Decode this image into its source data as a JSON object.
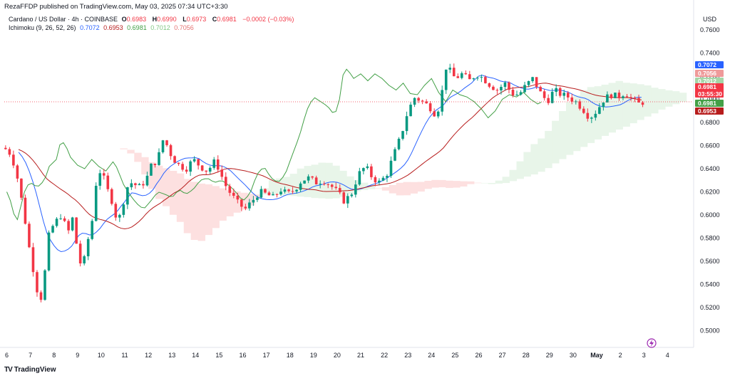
{
  "header": {
    "published": "RezaFFDP published on TradingView.com, May 03, 2025 07:34 UTC+3:30"
  },
  "legend": {
    "symbol": "Cardano / US Dollar · 4h · COINBASE",
    "ohlc": [
      {
        "k": "O",
        "v": "0.6983"
      },
      {
        "k": "H",
        "v": "0.6990"
      },
      {
        "k": "L",
        "v": "0.6973"
      },
      {
        "k": "C",
        "v": "0.6981"
      }
    ],
    "change": "−0.0002 (−0.03%)",
    "indicator": "Ichimoku (9, 26, 52, 26)",
    "indicator_values": [
      {
        "v": "0.7072",
        "color": "#2962ff"
      },
      {
        "v": "0.6953",
        "color": "#b71c1c"
      },
      {
        "v": "0.6981",
        "color": "#43a047"
      },
      {
        "v": "0.7012",
        "color": "#a5d6a7"
      },
      {
        "v": "0.7056",
        "color": "#ef9a9a"
      }
    ]
  },
  "axis": {
    "currency": "USD",
    "y_ticks": [
      "0.7600",
      "0.7400",
      "0.7200",
      "0.7000",
      "0.6800",
      "0.6600",
      "0.6400",
      "0.6200",
      "0.6000",
      "0.5800",
      "0.5600",
      "0.5400",
      "0.5200",
      "0.5000"
    ],
    "x_ticks": [
      "6",
      "7",
      "8",
      "9",
      "10",
      "11",
      "12",
      "13",
      "14",
      "15",
      "16",
      "17",
      "18",
      "19",
      "20",
      "21",
      "22",
      "23",
      "24",
      "25",
      "26",
      "27",
      "28",
      "29",
      "30",
      "May",
      "2",
      "3",
      "4"
    ]
  },
  "price_tags": [
    {
      "label": "0.7072",
      "value": 0.7072,
      "color": "#2962ff"
    },
    {
      "label": "0.7056",
      "value": 0.7056,
      "color": "#ef9a9a"
    },
    {
      "label": "0.7012",
      "value": 0.7012,
      "color": "#a5d6a7"
    },
    {
      "label": "0.6981",
      "value": 0.6981,
      "color": "#f23645",
      "sub": "03:55:30"
    },
    {
      "label": "0.6981",
      "value": 0.695,
      "color": "#43a047"
    },
    {
      "label": "0.6953",
      "value": 0.6935,
      "color": "#b71c1c"
    }
  ],
  "branding": "TradingView",
  "colors": {
    "up": "#089981",
    "down": "#f23645",
    "tenkan": "#2962ff",
    "kijun": "#b71c1c",
    "chikou": "#43a047",
    "cloud_bull": "#e8f5e9",
    "cloud_bear": "#fde0e0"
  },
  "chart_data": {
    "type": "candlestick",
    "title": "Cardano / US Dollar · 4h · COINBASE",
    "ylim": [
      0.49,
      0.77
    ],
    "x_categories": [
      "6",
      "7",
      "8",
      "9",
      "10",
      "11",
      "12",
      "13",
      "14",
      "15",
      "16",
      "17",
      "18",
      "19",
      "20",
      "21",
      "22",
      "23",
      "24",
      "25",
      "26",
      "27",
      "28",
      "29",
      "30",
      "May",
      "2",
      "3",
      "4"
    ],
    "last_price": 0.6981,
    "close_path": [
      [
        5.9,
        0.658
      ],
      [
        6.2,
        0.652
      ],
      [
        6.5,
        0.628
      ],
      [
        6.8,
        0.592
      ],
      [
        7.0,
        0.565
      ],
      [
        7.2,
        0.545
      ],
      [
        7.4,
        0.522
      ],
      [
        7.6,
        0.548
      ],
      [
        7.8,
        0.585
      ],
      [
        8.0,
        0.592
      ],
      [
        8.3,
        0.6
      ],
      [
        8.6,
        0.585
      ],
      [
        8.8,
        0.598
      ],
      [
        9.0,
        0.568
      ],
      [
        9.2,
        0.552
      ],
      [
        9.4,
        0.575
      ],
      [
        9.6,
        0.592
      ],
      [
        9.8,
        0.63
      ],
      [
        10.0,
        0.64
      ],
      [
        10.2,
        0.625
      ],
      [
        10.5,
        0.61
      ],
      [
        10.7,
        0.592
      ],
      [
        10.9,
        0.608
      ],
      [
        11.1,
        0.624
      ],
      [
        11.3,
        0.628
      ],
      [
        11.6,
        0.624
      ],
      [
        11.9,
        0.63
      ],
      [
        12.1,
        0.642
      ],
      [
        12.4,
        0.648
      ],
      [
        12.6,
        0.665
      ],
      [
        12.8,
        0.66
      ],
      [
        13.0,
        0.65
      ],
      [
        13.3,
        0.643
      ],
      [
        13.6,
        0.64
      ],
      [
        13.9,
        0.648
      ],
      [
        14.2,
        0.642
      ],
      [
        14.5,
        0.638
      ],
      [
        14.8,
        0.646
      ],
      [
        15.0,
        0.64
      ],
      [
        15.2,
        0.628
      ],
      [
        15.5,
        0.618
      ],
      [
        15.8,
        0.61
      ],
      [
        16.1,
        0.605
      ],
      [
        16.4,
        0.612
      ],
      [
        16.7,
        0.62
      ],
      [
        17.0,
        0.618
      ],
      [
        17.3,
        0.615
      ],
      [
        17.6,
        0.622
      ],
      [
        17.9,
        0.618
      ],
      [
        18.2,
        0.622
      ],
      [
        18.5,
        0.63
      ],
      [
        18.8,
        0.632
      ],
      [
        19.1,
        0.628
      ],
      [
        19.4,
        0.63
      ],
      [
        19.7,
        0.626
      ],
      [
        20.0,
        0.62
      ],
      [
        20.3,
        0.612
      ],
      [
        20.6,
        0.618
      ],
      [
        20.9,
        0.635
      ],
      [
        21.2,
        0.642
      ],
      [
        21.5,
        0.632
      ],
      [
        21.8,
        0.628
      ],
      [
        22.1,
        0.635
      ],
      [
        22.4,
        0.652
      ],
      [
        22.7,
        0.668
      ],
      [
        23.0,
        0.69
      ],
      [
        23.3,
        0.702
      ],
      [
        23.6,
        0.698
      ],
      [
        23.9,
        0.694
      ],
      [
        24.2,
        0.686
      ],
      [
        24.4,
        0.7
      ],
      [
        24.6,
        0.728
      ],
      [
        24.8,
        0.724
      ],
      [
        25.0,
        0.718
      ],
      [
        25.3,
        0.722
      ],
      [
        25.6,
        0.716
      ],
      [
        25.9,
        0.722
      ],
      [
        26.2,
        0.718
      ],
      [
        26.5,
        0.712
      ],
      [
        26.8,
        0.708
      ],
      [
        27.1,
        0.714
      ],
      [
        27.4,
        0.705
      ],
      [
        27.7,
        0.704
      ],
      [
        28.0,
        0.712
      ],
      [
        28.3,
        0.718
      ],
      [
        28.6,
        0.706
      ],
      [
        28.9,
        0.698
      ],
      [
        29.2,
        0.708
      ],
      [
        29.5,
        0.704
      ],
      [
        29.8,
        0.702
      ],
      [
        30.1,
        0.698
      ],
      [
        30.4,
        0.692
      ],
      [
        30.7,
        0.684
      ],
      [
        31.0,
        0.69
      ],
      [
        31.3,
        0.7
      ],
      [
        31.6,
        0.704
      ],
      [
        31.9,
        0.702
      ],
      [
        32.2,
        0.706
      ],
      [
        32.5,
        0.7
      ],
      [
        32.8,
        0.696
      ],
      [
        33.0,
        0.698
      ]
    ]
  }
}
